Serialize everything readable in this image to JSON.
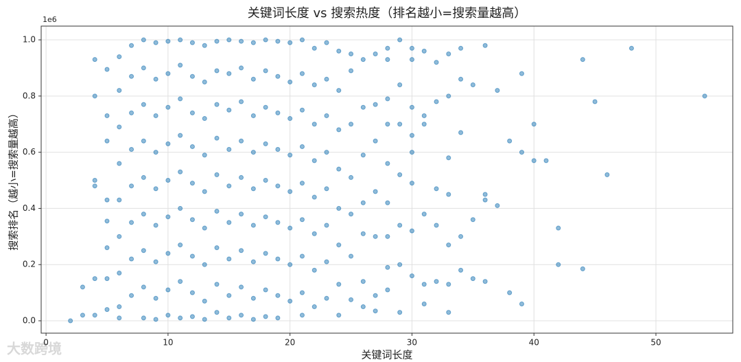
{
  "chart_data": {
    "type": "scatter",
    "title": "关键词长度 vs 搜索热度（排名越小=搜索量越高）",
    "x_label": "关键词长度",
    "y_label": "搜索排名（越小=搜索量越高）",
    "y_offset_label": "1e6",
    "color": "#1f77b4",
    "grid": true,
    "xlim": [
      -0.4,
      56.3
    ],
    "ylim": [
      -44000,
      1049000
    ],
    "xticks": [
      0,
      10,
      20,
      30,
      40,
      50
    ],
    "yticks": [
      {
        "value": 0,
        "label": "0.0"
      },
      {
        "value": 200000,
        "label": "0.2"
      },
      {
        "value": 400000,
        "label": "0.4"
      },
      {
        "value": 600000,
        "label": "0.6"
      },
      {
        "value": 800000,
        "label": "0.8"
      },
      {
        "value": 1000000,
        "label": "1.0"
      }
    ],
    "x": [
      2,
      3,
      3,
      4,
      4,
      4,
      4,
      4,
      4,
      5,
      5,
      5,
      5,
      5,
      5,
      5,
      5,
      6,
      6,
      6,
      6,
      6,
      6,
      6,
      6,
      6,
      7,
      7,
      7,
      7,
      7,
      7,
      7,
      7,
      8,
      8,
      8,
      8,
      8,
      8,
      8,
      8,
      8,
      9,
      9,
      9,
      9,
      9,
      9,
      9,
      9,
      9,
      10,
      10,
      10,
      10,
      10,
      10,
      10,
      10,
      10,
      11,
      11,
      11,
      11,
      11,
      11,
      11,
      11,
      11,
      12,
      12,
      12,
      12,
      12,
      12,
      12,
      12,
      12,
      13,
      13,
      13,
      13,
      13,
      13,
      13,
      13,
      13,
      14,
      14,
      14,
      14,
      14,
      14,
      14,
      14,
      14,
      15,
      15,
      15,
      15,
      15,
      15,
      15,
      15,
      15,
      16,
      16,
      16,
      16,
      16,
      16,
      16,
      16,
      16,
      17,
      17,
      17,
      17,
      17,
      17,
      17,
      17,
      17,
      18,
      18,
      18,
      18,
      18,
      18,
      18,
      18,
      18,
      19,
      19,
      19,
      19,
      19,
      19,
      19,
      19,
      19,
      20,
      20,
      20,
      20,
      20,
      20,
      20,
      20,
      21,
      21,
      21,
      21,
      21,
      21,
      21,
      21,
      21,
      22,
      22,
      22,
      22,
      22,
      22,
      22,
      22,
      23,
      23,
      23,
      23,
      23,
      23,
      23,
      23,
      24,
      24,
      24,
      24,
      24,
      24,
      24,
      24,
      25,
      25,
      25,
      25,
      25,
      25,
      25,
      26,
      26,
      26,
      26,
      26,
      26,
      26,
      27,
      27,
      27,
      27,
      27,
      27,
      27,
      28,
      28,
      28,
      28,
      28,
      28,
      28,
      28,
      28,
      29,
      29,
      29,
      29,
      29,
      29,
      29,
      30,
      30,
      30,
      30,
      30,
      30,
      30,
      30,
      31,
      31,
      31,
      31,
      31,
      31,
      32,
      32,
      32,
      32,
      32,
      33,
      33,
      33,
      33,
      33,
      33,
      33,
      34,
      34,
      34,
      34,
      34,
      35,
      35,
      35,
      36,
      36,
      36,
      36,
      37,
      37,
      38,
      38,
      39,
      39,
      39,
      40,
      40,
      41,
      42,
      42,
      44,
      44,
      45,
      46,
      48,
      54
    ],
    "values": [
      0,
      120000,
      20000,
      930000,
      800000,
      500000,
      480000,
      150000,
      20000,
      895000,
      730000,
      640000,
      430000,
      355000,
      260000,
      150000,
      40000,
      940000,
      820000,
      690000,
      560000,
      430000,
      300000,
      170000,
      50000,
      10000,
      980000,
      870000,
      740000,
      610000,
      480000,
      350000,
      220000,
      90000,
      1000000,
      900000,
      770000,
      640000,
      510000,
      380000,
      250000,
      120000,
      10000,
      990000,
      860000,
      730000,
      600000,
      470000,
      340000,
      210000,
      80000,
      5000,
      995000,
      880000,
      760000,
      630000,
      500000,
      370000,
      240000,
      110000,
      20000,
      1000000,
      910000,
      790000,
      660000,
      530000,
      400000,
      270000,
      140000,
      10000,
      990000,
      870000,
      740000,
      620000,
      490000,
      360000,
      230000,
      100000,
      15000,
      980000,
      850000,
      720000,
      590000,
      460000,
      330000,
      200000,
      70000,
      5000,
      995000,
      890000,
      770000,
      650000,
      520000,
      390000,
      260000,
      130000,
      30000,
      1000000,
      880000,
      750000,
      610000,
      480000,
      350000,
      220000,
      90000,
      10000,
      995000,
      900000,
      780000,
      640000,
      510000,
      380000,
      250000,
      120000,
      20000,
      990000,
      860000,
      730000,
      600000,
      470000,
      340000,
      210000,
      80000,
      5000,
      1000000,
      890000,
      760000,
      630000,
      500000,
      370000,
      240000,
      110000,
      15000,
      995000,
      870000,
      740000,
      610000,
      480000,
      350000,
      220000,
      90000,
      10000,
      990000,
      850000,
      720000,
      590000,
      460000,
      330000,
      200000,
      70000,
      1000000,
      880000,
      750000,
      620000,
      490000,
      360000,
      230000,
      100000,
      20000,
      970000,
      840000,
      700000,
      570000,
      440000,
      310000,
      180000,
      50000,
      990000,
      860000,
      730000,
      600000,
      470000,
      340000,
      210000,
      80000,
      960000,
      820000,
      680000,
      540000,
      400000,
      270000,
      130000,
      20000,
      950000,
      890000,
      700000,
      510000,
      380000,
      230000,
      75000,
      930000,
      760000,
      590000,
      420000,
      310000,
      140000,
      50000,
      950000,
      770000,
      640000,
      460000,
      300000,
      90000,
      35000,
      970000,
      930000,
      790000,
      700000,
      560000,
      420000,
      300000,
      190000,
      110000,
      1000000,
      840000,
      700000,
      520000,
      340000,
      200000,
      30000,
      970000,
      930000,
      760000,
      660000,
      600000,
      490000,
      320000,
      160000,
      960000,
      730000,
      700000,
      380000,
      130000,
      60000,
      920000,
      780000,
      470000,
      340000,
      140000,
      950000,
      800000,
      580000,
      450000,
      270000,
      130000,
      30000,
      970000,
      860000,
      670000,
      300000,
      180000,
      840000,
      360000,
      150000,
      980000,
      450000,
      430000,
      140000,
      820000,
      410000,
      640000,
      100000,
      880000,
      600000,
      60000,
      700000,
      570000,
      570000,
      330000,
      200000,
      930000,
      185000,
      780000,
      520000,
      970000,
      800000
    ]
  },
  "watermark": "大数跨境"
}
